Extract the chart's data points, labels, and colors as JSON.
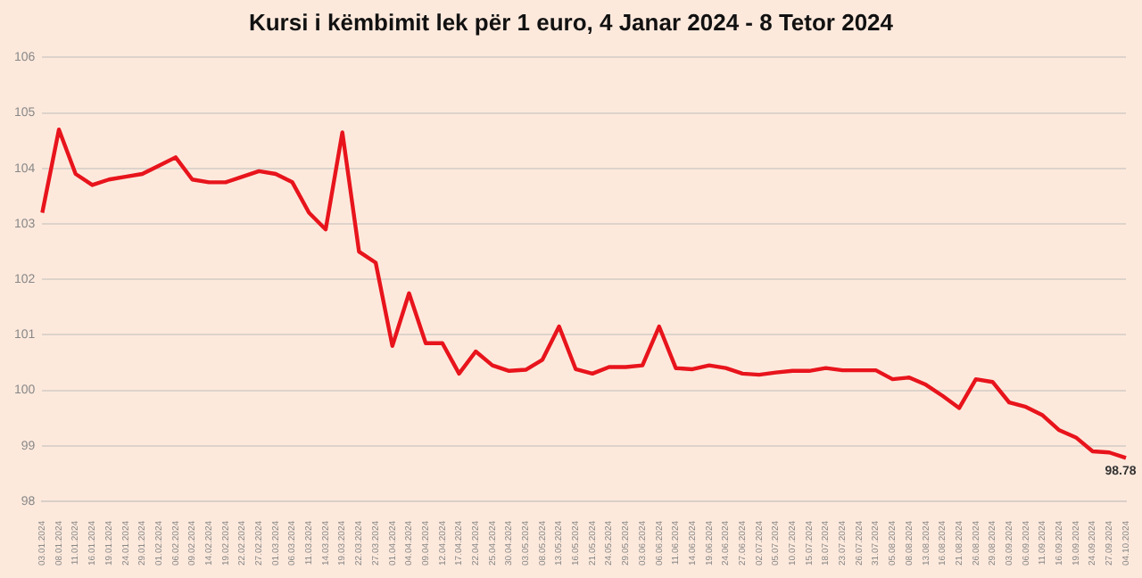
{
  "chart_data": {
    "type": "line",
    "title": "Kursi i këmbimit lek për 1 euro, 4 Janar 2024 - 8 Tetor 2024",
    "categories": [
      "03.01.2024",
      "08.01.2024",
      "11.01.2024",
      "16.01.2024",
      "19.01.2024",
      "24.01.2024",
      "29.01.2024",
      "01.02.2024",
      "06.02.2024",
      "09.02.2024",
      "14.02.2024",
      "19.02.2024",
      "22.02.2024",
      "27.02.2024",
      "01.03.2024",
      "06.03.2024",
      "11.03.2024",
      "14.03.2024",
      "19.03.2024",
      "22.03.2024",
      "27.03.2024",
      "01.04.2024",
      "04.04.2024",
      "09.04.2024",
      "12.04.2024",
      "17.04.2024",
      "22.04.2024",
      "25.04.2024",
      "30.04.2024",
      "03.05.2024",
      "08.05.2024",
      "13.05.2024",
      "16.05.2024",
      "21.05.2024",
      "24.05.2024",
      "29.05.2024",
      "03.06.2024",
      "06.06.2024",
      "11.06.2024",
      "14.06.2024",
      "19.06.2024",
      "24.06.2024",
      "27.06.2024",
      "02.07.2024",
      "05.07.2024",
      "10.07.2024",
      "15.07.2024",
      "18.07.2024",
      "23.07.2024",
      "26.07.2024",
      "31.07.2024",
      "05.08.2024",
      "08.08.2024",
      "13.08.2024",
      "16.08.2024",
      "21.08.2024",
      "26.08.2024",
      "29.08.2024",
      "03.09.2024",
      "06.09.2024",
      "11.09.2024",
      "16.09.2024",
      "19.09.2024",
      "24.09.2024",
      "27.09.2024",
      "04.10.2024"
    ],
    "series": [
      {
        "color": "#e8141c",
        "values": [
          103.2,
          104.7,
          103.9,
          103.7,
          103.8,
          103.85,
          103.9,
          104.05,
          104.2,
          103.8,
          103.75,
          103.75,
          103.85,
          103.95,
          103.9,
          103.75,
          103.2,
          102.9,
          104.65,
          102.5,
          102.3,
          100.8,
          101.75,
          100.85,
          100.85,
          100.3,
          100.7,
          100.45,
          100.35,
          100.37,
          100.55,
          101.15,
          100.38,
          100.3,
          100.42,
          100.42,
          100.45,
          101.15,
          100.4,
          100.38,
          100.45,
          100.4,
          100.3,
          100.28,
          100.32,
          100.35,
          100.35,
          100.4,
          100.36,
          100.36,
          100.36,
          100.2,
          100.23,
          100.1,
          99.9,
          99.68,
          100.2,
          100.15,
          99.78,
          99.7,
          99.55,
          99.28,
          99.15,
          98.9,
          98.88,
          98.78
        ],
        "value_labels": [
          null,
          null,
          null,
          null,
          null,
          null,
          null,
          null,
          null,
          null,
          null,
          null,
          null,
          null,
          null,
          null,
          null,
          null,
          null,
          null,
          null,
          null,
          null,
          null,
          null,
          null,
          null,
          null,
          null,
          null,
          null,
          null,
          null,
          null,
          null,
          null,
          null,
          null,
          null,
          null,
          null,
          null,
          null,
          null,
          null,
          null,
          null,
          null,
          null,
          null,
          null,
          null,
          null,
          null,
          null,
          null,
          null,
          null,
          null,
          null,
          null,
          null,
          null,
          null,
          null,
          "98.78"
        ]
      }
    ],
    "ylim": [
      98,
      106
    ],
    "yticks": [
      98,
      99,
      100,
      101,
      102,
      103,
      104,
      105,
      106
    ],
    "grid": "y",
    "legend": false,
    "marker": "none",
    "line_style": "solid"
  }
}
